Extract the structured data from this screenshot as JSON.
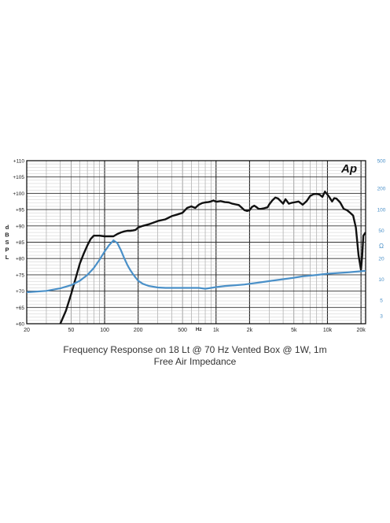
{
  "chart_data": {
    "type": "line",
    "x_scale": "log",
    "x_range": [
      20,
      22000
    ],
    "y_left_range": [
      60,
      110
    ],
    "y_right_scale": "log",
    "y_right_range": [
      2.3,
      500
    ],
    "grid": true,
    "xticks": [
      "20",
      "50",
      "100",
      "200",
      "500",
      "1k",
      "2k",
      "5k",
      "10k",
      "20k"
    ],
    "xtick_values": [
      20,
      50,
      100,
      200,
      500,
      1000,
      2000,
      5000,
      10000,
      20000
    ],
    "xlabel": "Hz",
    "yticks_left": [
      "+60",
      "+65",
      "+70",
      "+75",
      "+80",
      "+85",
      "+90",
      "+95",
      "+100",
      "+105",
      "+110"
    ],
    "ytick_left_values": [
      60,
      65,
      70,
      75,
      80,
      85,
      90,
      95,
      100,
      105,
      110
    ],
    "ylabel_left": "dB SPL",
    "yticks_right": [
      "3",
      "5",
      "10",
      "20",
      "50",
      "100",
      "200",
      "500"
    ],
    "ytick_right_values": [
      3,
      5,
      10,
      20,
      50,
      100,
      200,
      500
    ],
    "ylabel_right": "Ω",
    "logo": "Ap",
    "series": [
      {
        "name": "Frequency Response on 18 Lt @ 70 Hz Vented Box @ 1W, 1m",
        "axis": "left",
        "color": "#111111",
        "x": [
          40,
          45,
          50,
          55,
          60,
          65,
          70,
          75,
          80,
          90,
          100,
          110,
          120,
          130,
          140,
          150,
          160,
          170,
          180,
          190,
          200,
          220,
          250,
          300,
          350,
          400,
          450,
          500,
          550,
          600,
          650,
          700,
          750,
          800,
          850,
          900,
          950,
          1000,
          1100,
          1200,
          1300,
          1400,
          1500,
          1600,
          1700,
          1800,
          1900,
          2000,
          2100,
          2200,
          2300,
          2400,
          2500,
          2700,
          2900,
          3000,
          3200,
          3400,
          3600,
          3800,
          4000,
          4200,
          4500,
          4800,
          5000,
          5500,
          6000,
          6500,
          7000,
          7500,
          8000,
          8500,
          9000,
          9500,
          10000,
          10500,
          11000,
          11500,
          12000,
          12500,
          13000,
          14000,
          15000,
          16000,
          17000,
          18000,
          19000,
          20000,
          20500,
          21000,
          22000
        ],
        "y": [
          60,
          64,
          69,
          74,
          78.5,
          81.5,
          84,
          86,
          87,
          87,
          86.8,
          86.8,
          86.8,
          87.5,
          88,
          88.3,
          88.5,
          88.5,
          88.6,
          88.8,
          89.5,
          90,
          90.5,
          91.5,
          92,
          93,
          93.5,
          94,
          95.5,
          96,
          95.5,
          96.5,
          97,
          97.2,
          97.3,
          97.5,
          97.8,
          97.4,
          97.6,
          97.3,
          97.2,
          96.8,
          96.6,
          96.4,
          95.6,
          94.8,
          94.6,
          94.8,
          95.8,
          96.2,
          95.8,
          95.3,
          95.2,
          95.4,
          95.7,
          96.6,
          97.8,
          98.7,
          98.4,
          97.6,
          96.8,
          98.2,
          96.8,
          97.1,
          97.2,
          97.5,
          96.5,
          97.6,
          99.2,
          99.7,
          99.8,
          99.6,
          98.9,
          100.5,
          99.6,
          98.6,
          97.5,
          98.5,
          98.4,
          97.8,
          97.2,
          95.2,
          94.8,
          94,
          93.2,
          89.5,
          81,
          76.5,
          81,
          87,
          88
        ]
      },
      {
        "name": "Free Air Impedance",
        "axis": "right",
        "color": "#4a90c8",
        "x": [
          20,
          30,
          40,
          50,
          60,
          70,
          80,
          90,
          100,
          110,
          120,
          130,
          140,
          150,
          160,
          170,
          180,
          190,
          200,
          220,
          250,
          300,
          350,
          400,
          450,
          500,
          600,
          700,
          800,
          900,
          1000,
          1200,
          1500,
          1800,
          2000,
          2500,
          3000,
          4000,
          5000,
          6000,
          8000,
          10000,
          15000,
          20000,
          22000
        ],
        "y": [
          6.5,
          6.8,
          7.4,
          8.2,
          9.5,
          11.5,
          14.5,
          19,
          25,
          31,
          36,
          33,
          26,
          20,
          16,
          13.5,
          11.8,
          10.5,
          9.5,
          8.6,
          8,
          7.6,
          7.5,
          7.5,
          7.5,
          7.5,
          7.5,
          7.5,
          7.3,
          7.5,
          7.7,
          8,
          8.2,
          8.4,
          8.6,
          9,
          9.4,
          10,
          10.5,
          11,
          11.5,
          12,
          12.5,
          13,
          13.2
        ]
      }
    ]
  },
  "captions": {
    "line1": "Frequency Response on 18 Lt @ 70 Hz Vented Box @ 1W, 1m",
    "line2": "Free Air Impedance"
  }
}
